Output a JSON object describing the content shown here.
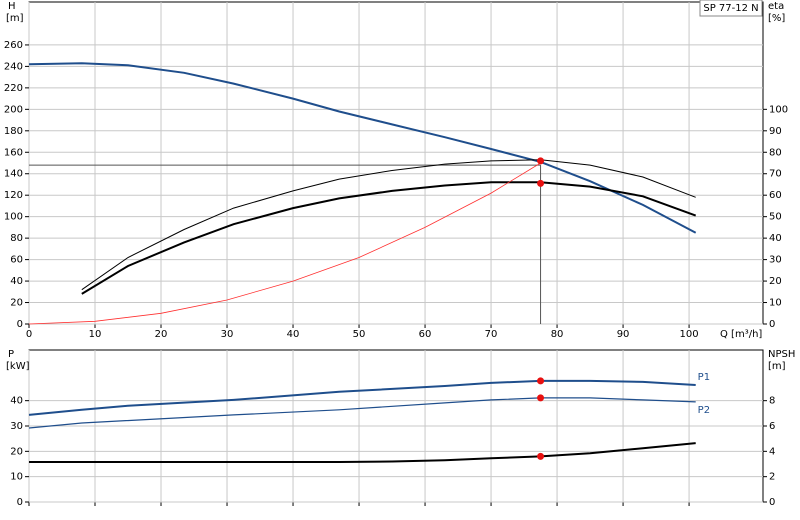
{
  "chart_data": [
    {
      "type": "line",
      "title": "SP 77-12 N",
      "ylabel": "H",
      "yunit": "[m]",
      "y2label": "eta",
      "y2unit": "[%]",
      "xlabel": "Q [m³/h]",
      "xlim": [
        0,
        111.2
      ],
      "ylim": [
        0,
        300
      ],
      "y2lim": [
        0,
        150
      ],
      "xticks": [
        0,
        10,
        20,
        30,
        40,
        50,
        60,
        70,
        80,
        90,
        100
      ],
      "yticks": [
        0,
        20,
        40,
        60,
        80,
        100,
        120,
        140,
        160,
        180,
        200,
        220,
        240,
        260
      ],
      "y2ticks": [
        0,
        10,
        20,
        30,
        40,
        50,
        60,
        70,
        80,
        90,
        100
      ],
      "grid": true,
      "series": [
        {
          "color": "#1f4e8c",
          "line_width": 2,
          "x": [
            0,
            8,
            15,
            23.5,
            31,
            40,
            47,
            55,
            63,
            70,
            77.5,
            85,
            93,
            101
          ],
          "values": [
            242,
            243,
            241,
            234,
            224,
            210,
            198,
            186,
            174,
            163,
            151,
            133,
            111,
            85
          ]
        },
        {
          "color": "#000000",
          "line_width": 1,
          "axis": "y2",
          "x": [
            8,
            15,
            23.5,
            31,
            40,
            47,
            55,
            63,
            70,
            77.5,
            85,
            93,
            101
          ],
          "values": [
            16,
            31,
            44,
            54,
            62,
            67.5,
            71.5,
            74.5,
            76,
            76.5,
            74,
            68.5,
            59
          ]
        },
        {
          "color": "#000000",
          "line_width": 2,
          "axis": "y2",
          "x": [
            8,
            15,
            23.5,
            31,
            40,
            47,
            55,
            63,
            70,
            77.5,
            85,
            93,
            101
          ],
          "values": [
            14,
            27,
            38,
            46.5,
            54,
            58.5,
            62,
            64.5,
            66,
            66,
            64,
            59.5,
            50.5
          ]
        },
        {
          "color": "#ff3030",
          "line_width": 0.8,
          "x": [
            0,
            10,
            20,
            30,
            40,
            50,
            60,
            70,
            77.5
          ],
          "values": [
            0,
            2.5,
            10,
            22.4,
            40,
            62,
            90,
            122,
            150
          ]
        }
      ],
      "crosshair": {
        "x": 77.5,
        "y": 148
      },
      "duty_points": [
        {
          "x": 77.5,
          "y": 152
        },
        {
          "x": 77.5,
          "y": 65.5,
          "axis": "y2"
        }
      ]
    },
    {
      "type": "line",
      "ylabel": "P",
      "yunit": "[kW]",
      "y2label": "NPSH",
      "y2unit": "[m]",
      "xlim": [
        0,
        111.2
      ],
      "ylim": [
        0,
        60
      ],
      "y2lim": [
        0,
        12
      ],
      "xticks": [
        0,
        10,
        20,
        30,
        40,
        50,
        60,
        70,
        80,
        90,
        100
      ],
      "yticks": [
        0,
        10,
        20,
        30,
        40
      ],
      "y2ticks": [
        0,
        2,
        4,
        6,
        8
      ],
      "grid": true,
      "series": [
        {
          "name": "P1",
          "color": "#1f4e8c",
          "line_width": 2,
          "x": [
            0,
            8,
            15,
            31,
            47,
            63,
            70,
            77.5,
            85,
            93,
            101
          ],
          "values": [
            34.4,
            36.4,
            38,
            40.3,
            43.5,
            45.8,
            47,
            47.8,
            47.8,
            47.4,
            46.2
          ]
        },
        {
          "name": "P2",
          "color": "#1f4e8c",
          "line_width": 1.2,
          "x": [
            0,
            8,
            31,
            47,
            63,
            70,
            77.5,
            85,
            93,
            101
          ],
          "values": [
            29.2,
            31.2,
            34.4,
            36.4,
            39.1,
            40.3,
            41.1,
            41.1,
            40.3,
            39.5
          ]
        },
        {
          "color": "#000000",
          "line_width": 2,
          "axis": "y2",
          "x": [
            0,
            8,
            31,
            47,
            55,
            63,
            70,
            77.5,
            85,
            93,
            101
          ],
          "values": [
            3.16,
            3.16,
            3.16,
            3.16,
            3.2,
            3.3,
            3.45,
            3.6,
            3.85,
            4.25,
            4.65
          ]
        }
      ],
      "duty_points": [
        {
          "x": 77.5,
          "y": 47.8
        },
        {
          "x": 77.5,
          "y": 41.1
        },
        {
          "x": 77.5,
          "y": 3.6,
          "axis": "y2"
        }
      ]
    }
  ]
}
